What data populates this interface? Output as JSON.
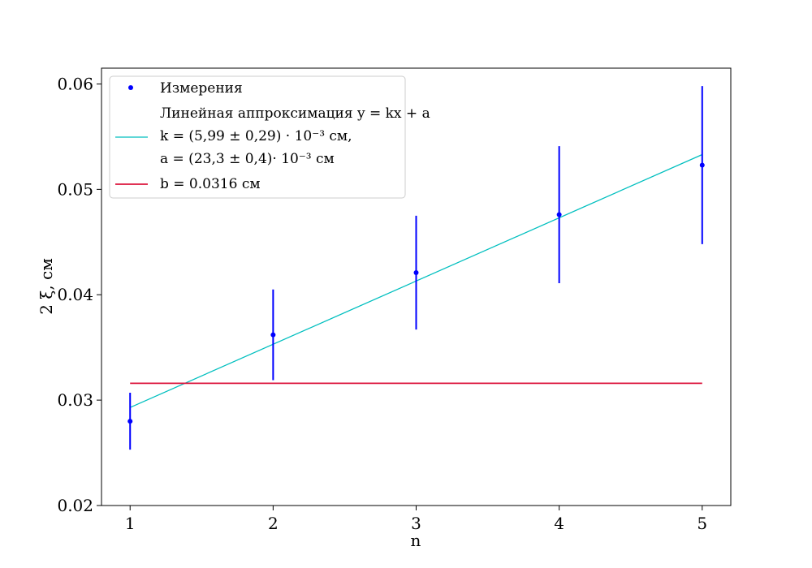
{
  "chart_data": {
    "type": "scatter",
    "title": "",
    "xlabel": "n",
    "ylabel": "2 ξ, см",
    "xlim": [
      0.8,
      5.2
    ],
    "ylim": [
      0.02,
      0.0615
    ],
    "x_ticks": [
      1,
      2,
      3,
      4,
      5
    ],
    "x_tick_labels": [
      "1",
      "2",
      "3",
      "4",
      "5"
    ],
    "y_ticks": [
      0.02,
      0.03,
      0.04,
      0.05,
      0.06
    ],
    "y_tick_labels": [
      "0.02",
      "0.03",
      "0.04",
      "0.05",
      "0.06"
    ],
    "grid": false,
    "legend_position": "top-left",
    "series": [
      {
        "name": "Измерения",
        "kind": "errorbar",
        "color": "#0000ff",
        "x": [
          1,
          2,
          3,
          4,
          5
        ],
        "y": [
          0.028,
          0.0362,
          0.0421,
          0.0476,
          0.0523
        ],
        "yerr": [
          0.0027,
          0.0043,
          0.0054,
          0.0065,
          0.0075
        ]
      },
      {
        "name": "Линейная аппроксимация y = kx + a",
        "legend_lines": [
          "k = (5,99 ± 0,29) · 10⁻³ см,",
          "a = (23,3 ± 0,4)· 10⁻³ см"
        ],
        "kind": "line",
        "color": "#00bfbf",
        "x": [
          1,
          5
        ],
        "y": [
          0.0293,
          0.0533
        ]
      },
      {
        "name": "b = 0.0316 см",
        "kind": "line",
        "color": "#dc143c",
        "x": [
          1,
          5
        ],
        "y": [
          0.0316,
          0.0316
        ]
      }
    ]
  }
}
